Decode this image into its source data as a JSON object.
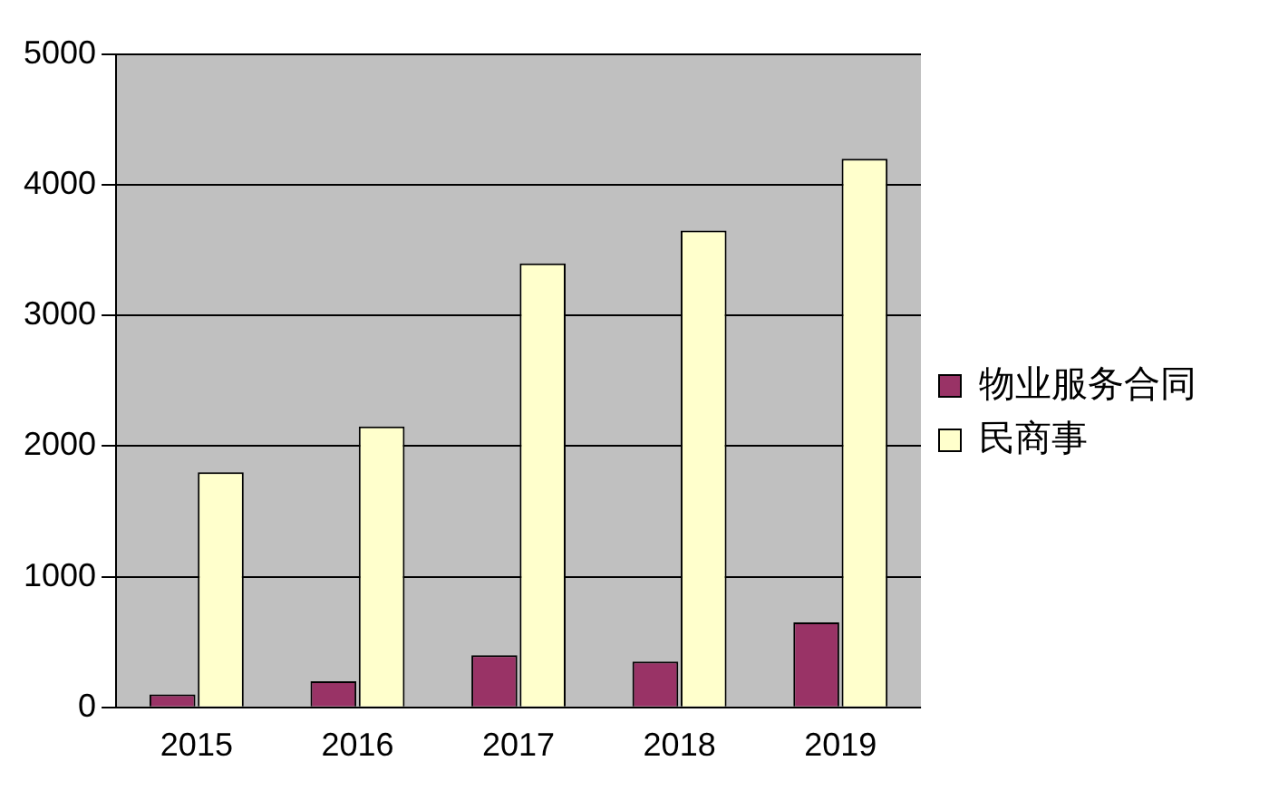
{
  "chart_data": {
    "type": "bar",
    "categories": [
      "2015",
      "2016",
      "2017",
      "2018",
      "2019"
    ],
    "series": [
      {
        "name": "物业服务合同",
        "color": "#993366",
        "values": [
          100,
          200,
          400,
          350,
          650
        ]
      },
      {
        "name": "民商事",
        "color": "#ffffcc",
        "values": [
          1800,
          2150,
          3400,
          3650,
          4200
        ]
      }
    ],
    "ylim": [
      0,
      5000
    ],
    "yticks": [
      0,
      1000,
      2000,
      3000,
      4000,
      5000
    ],
    "grid": "y",
    "legend": "right"
  }
}
